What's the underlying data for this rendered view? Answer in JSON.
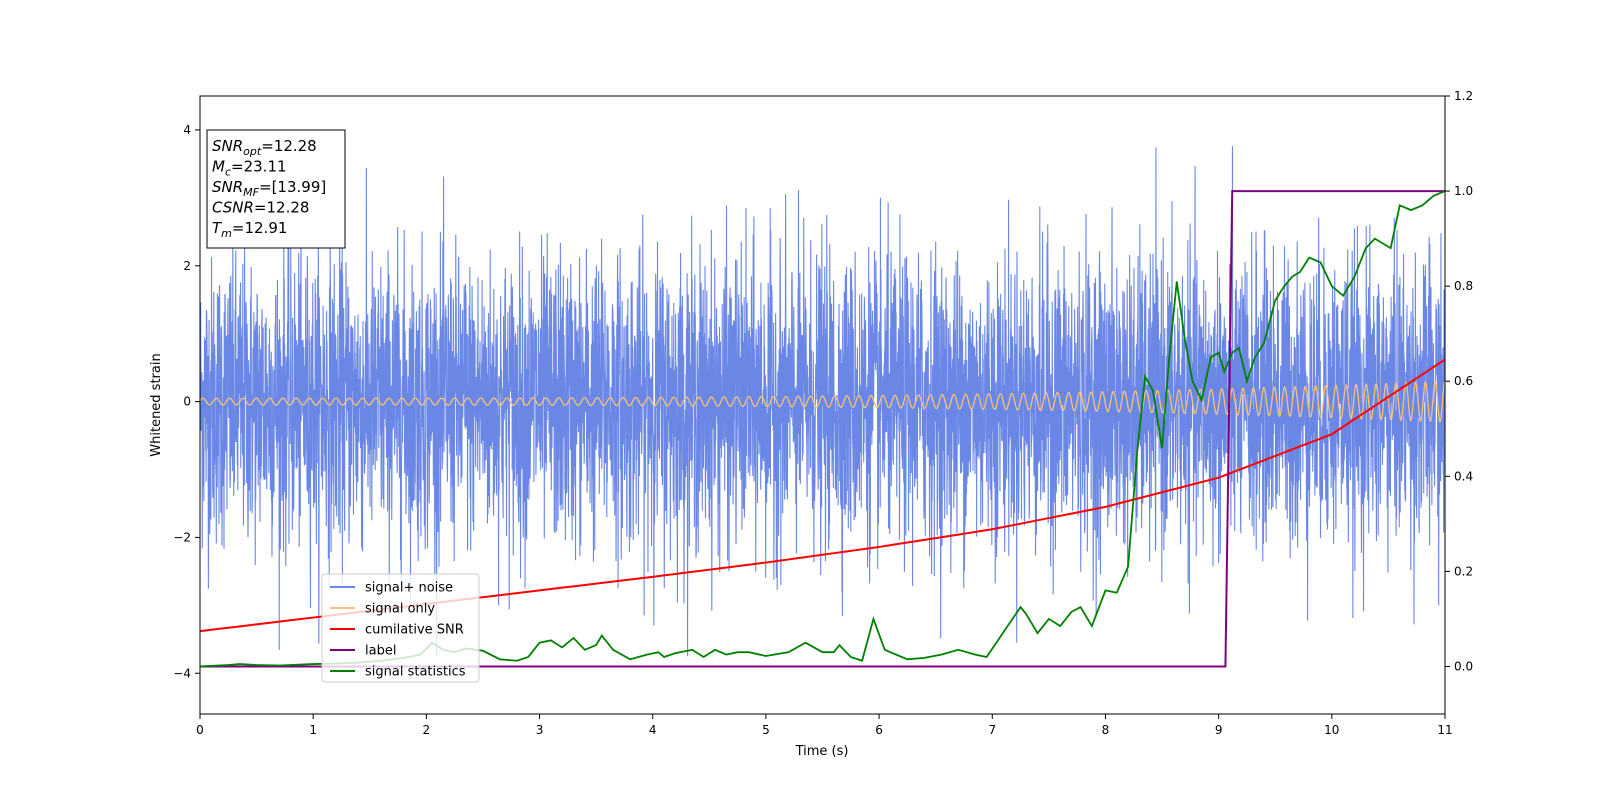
{
  "chart_data": {
    "type": "line",
    "xlabel": "Time (s)",
    "ylabel_left": "Whitened strain",
    "ylabel_right": "",
    "xlim": [
      0,
      11
    ],
    "ylim_left": [
      -4.6,
      4.5
    ],
    "ylim_right": [
      -0.1,
      1.2
    ],
    "x_ticks": [
      "0",
      "1",
      "2",
      "3",
      "4",
      "5",
      "6",
      "7",
      "8",
      "9",
      "10",
      "11"
    ],
    "y_ticks_left": [
      "−4",
      "−2",
      "0",
      "2",
      "4"
    ],
    "y_ticks_right": [
      "0.0",
      "0.2",
      "0.4",
      "0.6",
      "0.8",
      "1.0",
      "1.2"
    ],
    "grid": false,
    "legend_position": "lower-left",
    "annotation": [
      {
        "sym": "SNR",
        "sub": "opt",
        "val": "=12.28"
      },
      {
        "sym": "M",
        "sub": "c",
        "val": "=23.11"
      },
      {
        "sym": "SNR",
        "sub": "MF",
        "val": "=[13.99]"
      },
      {
        "sym": "CSNR",
        "sub": "",
        "val": "=12.28"
      },
      {
        "sym": "T",
        "sub": "m",
        "val": "=12.91"
      }
    ],
    "series": [
      {
        "name": "signal+ noise",
        "axis": "left",
        "color": "#6b87e6",
        "description": "whitened noise plus signal, amplitude roughly within -3.7 to 4.1 across 0 to 11 s"
      },
      {
        "name": "signal only",
        "axis": "left",
        "color": "#f4c27a",
        "description": "chirp oscillation, amplitude about 0.05 at t=0 growing to about 0.3 at t=11 with increasing frequency"
      },
      {
        "name": "cumilative SNR",
        "axis": "left",
        "color": "#ff0000",
        "x": [
          0,
          1,
          2,
          3,
          4,
          5,
          6,
          7,
          8,
          9,
          10,
          11
        ],
        "y": [
          -3.38,
          -3.18,
          -2.98,
          -2.78,
          -2.58,
          -2.37,
          -2.14,
          -1.88,
          -1.55,
          -1.12,
          -0.48,
          0.62
        ]
      },
      {
        "name": "label",
        "axis": "right",
        "color": "#800080",
        "x": [
          0,
          9.06,
          9.12,
          11
        ],
        "y": [
          0.0,
          0.0,
          1.0,
          1.0
        ]
      },
      {
        "name": "signal statistics",
        "axis": "right",
        "color": "#008000",
        "x": [
          0,
          0.25,
          0.35,
          0.5,
          0.7,
          0.8,
          1.0,
          1.2,
          1.4,
          1.6,
          1.8,
          1.95,
          2.05,
          2.15,
          2.25,
          2.35,
          2.5,
          2.65,
          2.8,
          2.9,
          3.0,
          3.1,
          3.2,
          3.3,
          3.4,
          3.5,
          3.55,
          3.65,
          3.8,
          3.95,
          4.05,
          4.1,
          4.2,
          4.35,
          4.45,
          4.55,
          4.65,
          4.75,
          4.85,
          5.0,
          5.2,
          5.35,
          5.5,
          5.6,
          5.65,
          5.75,
          5.85,
          5.95,
          6.05,
          6.25,
          6.4,
          6.55,
          6.7,
          6.85,
          6.95,
          7.05,
          7.15,
          7.25,
          7.3,
          7.4,
          7.5,
          7.6,
          7.7,
          7.78,
          7.88,
          8.0,
          8.1,
          8.2,
          8.28,
          8.35,
          8.42,
          8.5,
          8.56,
          8.63,
          8.7,
          8.77,
          8.85,
          8.93,
          9.0,
          9.05,
          9.12,
          9.18,
          9.25,
          9.32,
          9.4,
          9.5,
          9.58,
          9.65,
          9.72,
          9.8,
          9.9,
          10.0,
          10.1,
          10.2,
          10.3,
          10.38,
          10.45,
          10.52,
          10.6,
          10.7,
          10.8,
          10.9,
          11.0
        ],
        "y": [
          0.0,
          0.003,
          0.005,
          0.003,
          0.002,
          0.003,
          0.005,
          0.006,
          0.008,
          0.012,
          0.018,
          0.025,
          0.05,
          0.035,
          0.03,
          0.038,
          0.033,
          0.015,
          0.012,
          0.02,
          0.05,
          0.055,
          0.04,
          0.06,
          0.035,
          0.045,
          0.065,
          0.035,
          0.015,
          0.025,
          0.03,
          0.02,
          0.028,
          0.035,
          0.02,
          0.035,
          0.025,
          0.03,
          0.03,
          0.022,
          0.03,
          0.05,
          0.03,
          0.03,
          0.045,
          0.02,
          0.012,
          0.1,
          0.035,
          0.015,
          0.018,
          0.025,
          0.035,
          0.025,
          0.02,
          0.055,
          0.09,
          0.125,
          0.11,
          0.07,
          0.1,
          0.085,
          0.115,
          0.125,
          0.085,
          0.16,
          0.155,
          0.21,
          0.45,
          0.61,
          0.58,
          0.46,
          0.64,
          0.81,
          0.69,
          0.6,
          0.56,
          0.65,
          0.66,
          0.62,
          0.66,
          0.67,
          0.6,
          0.65,
          0.68,
          0.77,
          0.8,
          0.82,
          0.83,
          0.86,
          0.85,
          0.8,
          0.78,
          0.82,
          0.88,
          0.9,
          0.89,
          0.88,
          0.97,
          0.96,
          0.97,
          0.99,
          1.0
        ]
      }
    ]
  }
}
